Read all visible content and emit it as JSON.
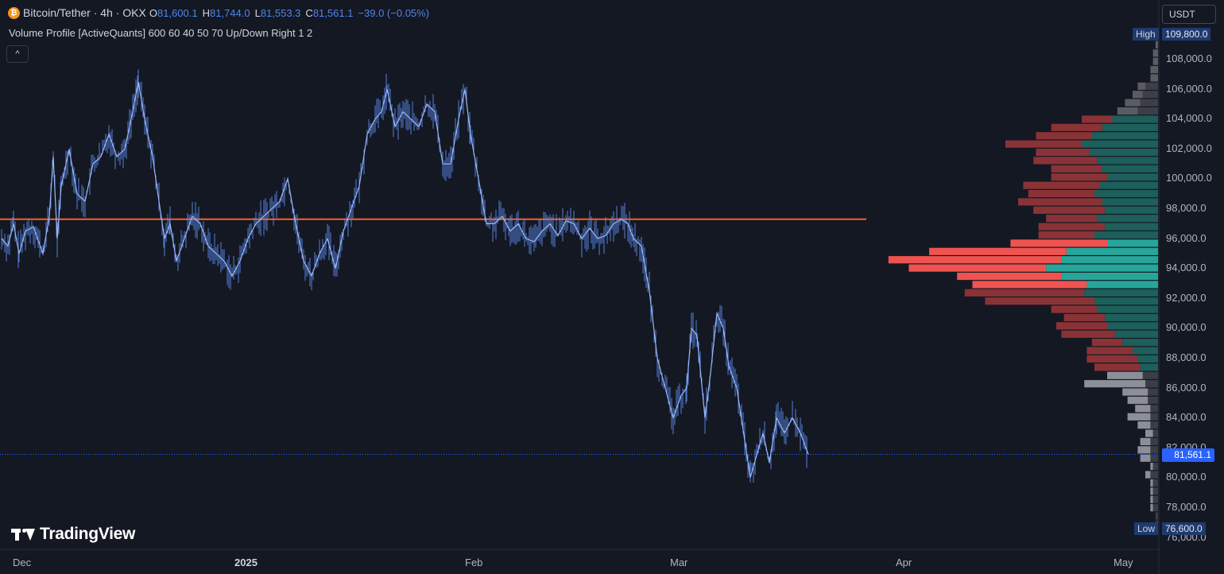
{
  "header": {
    "symbol_title": "Bitcoin/Tether · 4h · OKX",
    "coin_glyph": "₿",
    "ohlc": [
      {
        "label": "O",
        "value": "81,600.1"
      },
      {
        "label": "H",
        "value": "81,744.0"
      },
      {
        "label": "L",
        "value": "81,553.3"
      },
      {
        "label": "C",
        "value": "81,561.1"
      }
    ],
    "change": "−39.0 (−0.05%)"
  },
  "indicator": {
    "label": "Volume Profile [ActiveQuants] 600 60 40 50 70 Up/Down Right 1 2",
    "collapse_glyph": "^"
  },
  "price_scale": {
    "currency": "USDT",
    "ticks": [
      "108,000.0",
      "106,000.0",
      "104,000.0",
      "102,000.0",
      "100,000.0",
      "98,000.0",
      "96,000.0",
      "94,000.0",
      "92,000.0",
      "90,000.0",
      "88,000.0",
      "86,000.0",
      "84,000.0",
      "82,000.0",
      "80,000.0",
      "78,000.0",
      "76,000.0"
    ],
    "high_tag": "High",
    "high_value": "109,800.0",
    "low_tag": "Low",
    "low_value": "76,600.0",
    "current_price": "81,561.1"
  },
  "time_axis": {
    "labels": [
      {
        "text": "Dec",
        "bold": false
      },
      {
        "text": "2025",
        "bold": true
      },
      {
        "text": "Feb",
        "bold": false
      },
      {
        "text": "Mar",
        "bold": false
      },
      {
        "text": "Apr",
        "bold": false
      },
      {
        "text": "May",
        "bold": false
      }
    ]
  },
  "branding": {
    "logo_text": "TradingView"
  },
  "colors": {
    "background": "#141823",
    "price_line": "#5b8def",
    "poc_line": "#f5602b",
    "sell_strong": "#ef5350",
    "sell_dark": "#8a3337",
    "buy_strong": "#26a69a",
    "buy_dark": "#1d5f5a",
    "grey_light": "#8c8f97",
    "grey_dark": "#3a3d46",
    "accent_blue": "#2962ff"
  },
  "chart_data": {
    "type": "line",
    "series_name": "",
    "x_unit": "4h bars",
    "ylim": [
      76000,
      110000
    ],
    "poc_price": 97300,
    "last_price": 81561.1,
    "keypoints": [
      [
        0,
        96000
      ],
      [
        8,
        95500
      ],
      [
        15,
        97000
      ],
      [
        22,
        95000
      ],
      [
        30,
        96500
      ],
      [
        40,
        96800
      ],
      [
        52,
        95000
      ],
      [
        60,
        97500
      ],
      [
        65,
        101500
      ],
      [
        70,
        96000
      ],
      [
        75,
        99500
      ],
      [
        85,
        102000
      ],
      [
        95,
        99000
      ],
      [
        105,
        98500
      ],
      [
        115,
        101000
      ],
      [
        125,
        101500
      ],
      [
        135,
        103000
      ],
      [
        145,
        101500
      ],
      [
        155,
        102000
      ],
      [
        165,
        104500
      ],
      [
        172,
        106500
      ],
      [
        180,
        104000
      ],
      [
        190,
        101500
      ],
      [
        198,
        98500
      ],
      [
        205,
        96000
      ],
      [
        212,
        97000
      ],
      [
        220,
        94500
      ],
      [
        230,
        96000
      ],
      [
        240,
        97500
      ],
      [
        250,
        97000
      ],
      [
        260,
        95500
      ],
      [
        270,
        95000
      ],
      [
        280,
        94500
      ],
      [
        290,
        93500
      ],
      [
        300,
        94500
      ],
      [
        310,
        96000
      ],
      [
        320,
        97000
      ],
      [
        330,
        97500
      ],
      [
        340,
        98000
      ],
      [
        350,
        98500
      ],
      [
        360,
        100000
      ],
      [
        370,
        97000
      ],
      [
        380,
        94500
      ],
      [
        390,
        93500
      ],
      [
        400,
        95000
      ],
      [
        410,
        96000
      ],
      [
        420,
        94000
      ],
      [
        430,
        96500
      ],
      [
        440,
        98000
      ],
      [
        450,
        99500
      ],
      [
        460,
        103000
      ],
      [
        470,
        104000
      ],
      [
        478,
        104500
      ],
      [
        485,
        106000
      ],
      [
        495,
        103500
      ],
      [
        505,
        104500
      ],
      [
        515,
        104000
      ],
      [
        525,
        103500
      ],
      [
        535,
        105000
      ],
      [
        545,
        104500
      ],
      [
        555,
        101000
      ],
      [
        565,
        101000
      ],
      [
        575,
        104000
      ],
      [
        583,
        106000
      ],
      [
        590,
        103000
      ],
      [
        600,
        100000
      ],
      [
        610,
        97000
      ],
      [
        620,
        97000
      ],
      [
        630,
        97500
      ],
      [
        640,
        96500
      ],
      [
        650,
        97000
      ],
      [
        660,
        96000
      ],
      [
        670,
        95800
      ],
      [
        680,
        96500
      ],
      [
        690,
        97000
      ],
      [
        700,
        96200
      ],
      [
        710,
        97200
      ],
      [
        720,
        97000
      ],
      [
        730,
        96000
      ],
      [
        740,
        96700
      ],
      [
        750,
        96000
      ],
      [
        760,
        96200
      ],
      [
        770,
        97000
      ],
      [
        780,
        97300
      ],
      [
        788,
        97000
      ],
      [
        795,
        96000
      ],
      [
        805,
        95500
      ],
      [
        815,
        92500
      ],
      [
        825,
        88000
      ],
      [
        835,
        86000
      ],
      [
        845,
        84000
      ],
      [
        855,
        85500
      ],
      [
        862,
        86000
      ],
      [
        868,
        90000
      ],
      [
        875,
        89500
      ],
      [
        885,
        84000
      ],
      [
        892,
        87000
      ],
      [
        900,
        91000
      ],
      [
        908,
        90000
      ],
      [
        915,
        87500
      ],
      [
        925,
        86000
      ],
      [
        935,
        82500
      ],
      [
        942,
        80000
      ],
      [
        950,
        81500
      ],
      [
        958,
        83000
      ],
      [
        966,
        81000
      ],
      [
        975,
        84000
      ],
      [
        985,
        83000
      ],
      [
        995,
        84000
      ],
      [
        1005,
        83000
      ],
      [
        1015,
        81560
      ]
    ],
    "volume_profile": {
      "price_top": 109800,
      "price_bottom": 76600,
      "bins": 60,
      "shades_of_highlighted_rows": "strong colour only within the value area",
      "buy_volume": [
        0,
        0,
        0,
        0,
        0,
        0,
        5,
        6,
        7,
        8,
        18,
        22,
        26,
        30,
        27,
        24,
        22,
        20,
        23,
        25,
        22,
        21,
        24,
        21,
        25,
        20,
        36,
        38,
        44,
        38,
        28,
        29,
        25,
        24,
        21,
        20,
        17,
        14,
        10,
        8,
        7,
        6,
        5,
        4,
        4,
        3,
        3,
        3,
        2,
        3,
        3,
        3,
        2,
        3,
        2,
        2,
        2,
        2,
        1,
        1
      ],
      "sell_volume": [
        0,
        1,
        2,
        2,
        3,
        3,
        3,
        4,
        6,
        8,
        12,
        20,
        22,
        30,
        21,
        25,
        20,
        22,
        30,
        26,
        33,
        28,
        20,
        26,
        22,
        38,
        54,
        68,
        54,
        41,
        45,
        47,
        43,
        18,
        16,
        20,
        21,
        12,
        18,
        20,
        18,
        14,
        24,
        10,
        8,
        6,
        9,
        5,
        3,
        4,
        5,
        4,
        1,
        2,
        1,
        1,
        1,
        1,
        0,
        0
      ],
      "highlighted_sell_color": "#ef5350",
      "highlighted_buy_color": "#26a69a"
    }
  }
}
